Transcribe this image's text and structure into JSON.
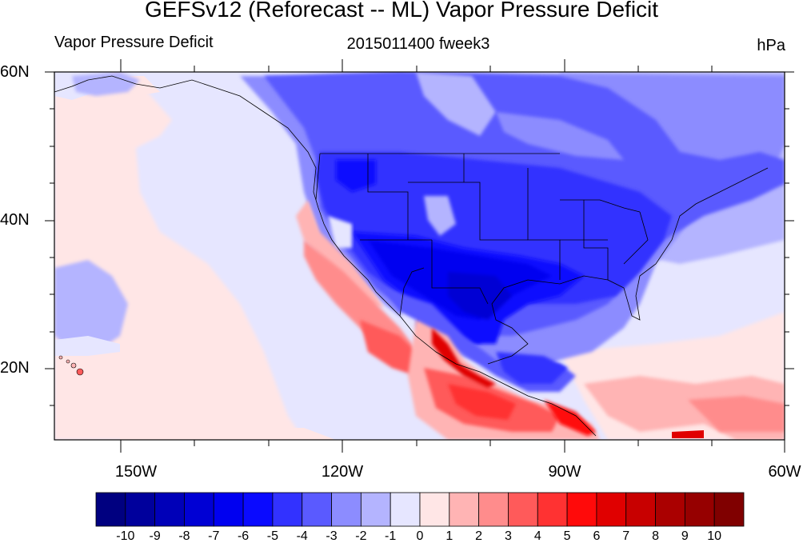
{
  "title": "GEFSv12 (Reforecast -- ML) Vapor Pressure Deficit",
  "subtitle_left": "Vapor Pressure Deficit",
  "subtitle_center": "2015011400 fweek3",
  "subtitle_right": "hPa",
  "lat_labels": [
    "60N",
    "40N",
    "20N"
  ],
  "lon_labels": [
    "150W",
    "120W",
    "90W",
    "60W"
  ],
  "colorbar": {
    "colors": [
      "#000080",
      "#00009c",
      "#0000b8",
      "#0000d4",
      "#0000f0",
      "#0a0aff",
      "#3232ff",
      "#5a5aff",
      "#8c8cff",
      "#b4b4ff",
      "#e6e6ff",
      "#ffe6e6",
      "#ffb4b4",
      "#ff8c8c",
      "#ff5a5a",
      "#ff3232",
      "#ff0a0a",
      "#e00000",
      "#c80000",
      "#aa0000",
      "#960000",
      "#800000"
    ],
    "labels": [
      "-10",
      "-9",
      "-8",
      "-7",
      "-6",
      "-5",
      "-4",
      "-3",
      "-2",
      "-1",
      "0",
      "1",
      "2",
      "3",
      "4",
      "5",
      "6",
      "7",
      "8",
      "9",
      "10"
    ]
  }
}
